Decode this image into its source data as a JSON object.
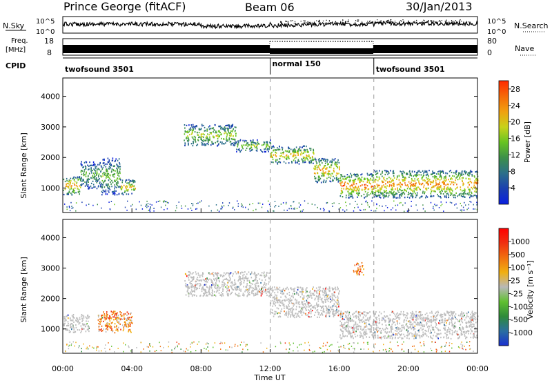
{
  "header": {
    "station": "Prince George (fitACF)",
    "beam": "Beam 06",
    "date": "30/Jan/2013"
  },
  "noise_panel": {
    "left_label": "N.Sky",
    "right_label": "N.Search",
    "left_ticks": [
      "10^5",
      "10^0"
    ],
    "right_ticks": [
      "10^5",
      "10^0"
    ]
  },
  "freq_panel": {
    "left_label_1": "Freq.",
    "left_label_2": "[MHz]",
    "left_ticks": [
      "18",
      "8"
    ],
    "right_label": "Nave",
    "right_ticks": [
      "80",
      "0"
    ]
  },
  "cpid": {
    "label": "CPID",
    "segments": [
      {
        "name": "twofsound 3501",
        "start": 0,
        "end": 12
      },
      {
        "name": "normal 150",
        "start": 12,
        "end": 18
      },
      {
        "name": "twofsound 3501",
        "start": 18,
        "end": 24
      }
    ]
  },
  "chart_data": [
    {
      "type": "heatmap",
      "title": "",
      "ylabel": "Slant Range [km]",
      "xlabel": "",
      "y_ticks": [
        "1000",
        "2000",
        "3000",
        "4000"
      ],
      "ylim": [
        200,
        4600
      ],
      "colorbar": {
        "label": "Power [dB]",
        "ticks": [
          "4",
          "8",
          "12",
          "16",
          "20",
          "24",
          "28"
        ],
        "range": [
          0,
          30
        ],
        "colors": [
          "#0b1fe0",
          "#1a3fb0",
          "#2b6f8a",
          "#3c8f4a",
          "#66c322",
          "#c8d21a",
          "#f0a010",
          "#f56a08",
          "#ff2a00"
        ]
      },
      "bands": [
        {
          "t0": 0.0,
          "t1": 1.0,
          "r0": 800,
          "r1": 1400,
          "level": 0.8
        },
        {
          "t0": 1.0,
          "t1": 2.2,
          "r0": 1000,
          "r1": 1900,
          "level": 0.45
        },
        {
          "t0": 2.2,
          "t1": 3.3,
          "r0": 800,
          "r1": 2000,
          "level": 0.5
        },
        {
          "t0": 3.3,
          "t1": 4.2,
          "r0": 800,
          "r1": 1300,
          "level": 0.7
        },
        {
          "t0": 7.0,
          "t1": 10.0,
          "r0": 2400,
          "r1": 3100,
          "level": 0.6
        },
        {
          "t0": 10.0,
          "t1": 12.0,
          "r0": 2200,
          "r1": 2600,
          "level": 0.55
        },
        {
          "t0": 12.0,
          "t1": 14.5,
          "r0": 1800,
          "r1": 2400,
          "level": 0.7
        },
        {
          "t0": 14.5,
          "t1": 16.0,
          "r0": 1200,
          "r1": 2000,
          "level": 0.75
        },
        {
          "t0": 16.0,
          "t1": 18.0,
          "r0": 700,
          "r1": 1500,
          "level": 0.85
        },
        {
          "t0": 18.0,
          "t1": 24.0,
          "r0": 700,
          "r1": 1600,
          "level": 0.8
        }
      ]
    },
    {
      "type": "heatmap",
      "title": "",
      "ylabel": "Slant Range [km]",
      "xlabel": "Time UT",
      "y_ticks": [
        "1000",
        "2000",
        "3000",
        "4000"
      ],
      "ylim": [
        200,
        4600
      ],
      "x_ticks": [
        "00:00",
        "04:00",
        "08:00",
        "12:00",
        "16:00",
        "20:00",
        "00:00"
      ],
      "xlim": [
        0,
        24
      ],
      "colorbar": {
        "label": "Velocity [m s⁻¹]",
        "ticks": [
          "1000",
          "500",
          "100",
          "25",
          "-25",
          "-100",
          "-500",
          "-1000"
        ],
        "colors": [
          "#1a2fd0",
          "#2b6fa0",
          "#2e8a3a",
          "#60c030",
          "#b8b8b8",
          "#f0b010",
          "#f07010",
          "#f03010",
          "#ff0000"
        ]
      },
      "bands": [
        {
          "t0": 0.0,
          "t1": 1.5,
          "r0": 900,
          "r1": 1500,
          "level": 0.5
        },
        {
          "t0": 2.0,
          "t1": 4.0,
          "r0": 900,
          "r1": 1600,
          "level": 0.7
        },
        {
          "t0": 7.0,
          "t1": 12.0,
          "r0": 2100,
          "r1": 2900,
          "level": 0.5
        },
        {
          "t0": 12.0,
          "t1": 16.0,
          "r0": 1400,
          "r1": 2400,
          "level": 0.5
        },
        {
          "t0": 16.0,
          "t1": 24.0,
          "r0": 700,
          "r1": 1600,
          "level": 0.5
        },
        {
          "t0": 16.8,
          "t1": 17.4,
          "r0": 2800,
          "r1": 3200,
          "level": 0.75
        }
      ]
    }
  ]
}
